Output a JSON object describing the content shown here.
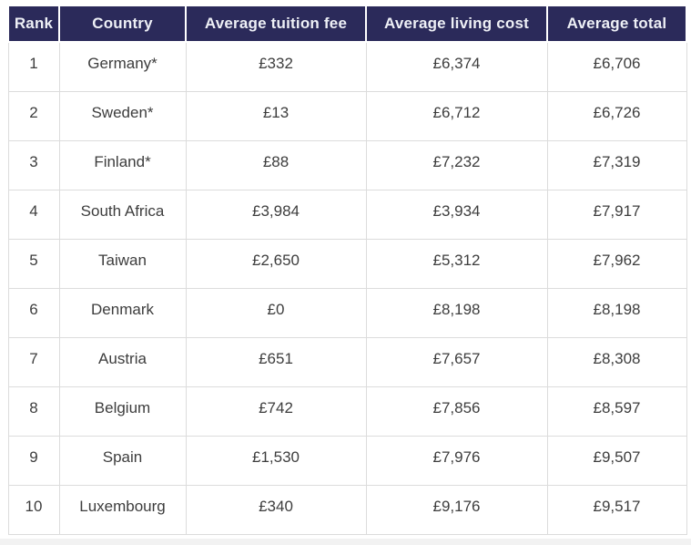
{
  "chart_data": {
    "type": "table",
    "currency": "£",
    "columns": [
      "Rank",
      "Country",
      "Average tuition fee",
      "Average living cost",
      "Average total"
    ],
    "rows": [
      [
        "1",
        "Germany*",
        "£332",
        "£6,374",
        "£6,706"
      ],
      [
        "2",
        "Sweden*",
        "£13",
        "£6,712",
        "£6,726"
      ],
      [
        "3",
        "Finland*",
        "£88",
        "£7,232",
        "£7,319"
      ],
      [
        "4",
        "South Africa",
        "£3,984",
        "£3,934",
        "£7,917"
      ],
      [
        "5",
        "Taiwan",
        "£2,650",
        "£5,312",
        "£7,962"
      ],
      [
        "6",
        "Denmark",
        "£0",
        "£8,198",
        "£8,198"
      ],
      [
        "7",
        "Austria",
        "£651",
        "£7,657",
        "£8,308"
      ],
      [
        "8",
        "Belgium",
        "£742",
        "£7,856",
        "£8,597"
      ],
      [
        "9",
        "Spain",
        "£1,530",
        "£7,976",
        "£9,507"
      ],
      [
        "10",
        "Luxembourg",
        "£340",
        "£9,176",
        "£9,517"
      ]
    ]
  },
  "colors": {
    "header_bg": "#2b2a5a",
    "header_text": "#eef0f6",
    "body_text": "#3d3d3d",
    "border": "#dcdcdc",
    "bottom_strip": "#f2f2f2"
  }
}
